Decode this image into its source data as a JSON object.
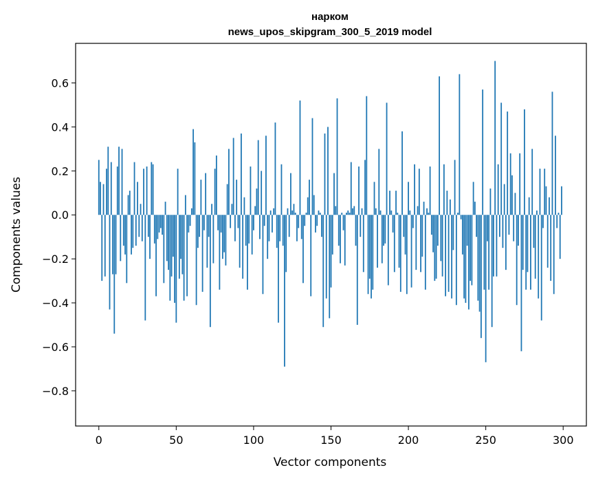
{
  "chart_data": {
    "type": "bar",
    "title_line1": "нарком",
    "title_line2": "news_upos_skipgram_300_5_2019 model",
    "xlabel": "Vector components",
    "ylabel": "Components values",
    "xlim": [
      -15,
      315
    ],
    "ylim": [
      -0.96,
      0.78
    ],
    "xticks": [
      0,
      50,
      100,
      150,
      200,
      250,
      300
    ],
    "yticks": [
      -0.8,
      -0.6,
      -0.4,
      -0.2,
      0.0,
      0.2,
      0.4,
      0.6
    ],
    "ytick_labels": [
      "−0.8",
      "−0.6",
      "−0.4",
      "−0.2",
      "0.0",
      "0.2",
      "0.4",
      "0.6"
    ],
    "bar_color": "#1f77b4",
    "values": [
      0.25,
      0.15,
      -0.3,
      0.14,
      -0.28,
      0.21,
      0.31,
      -0.43,
      0.24,
      -0.27,
      -0.54,
      -0.27,
      0.22,
      0.31,
      -0.21,
      0.3,
      -0.14,
      -0.18,
      -0.31,
      0.09,
      0.11,
      -0.18,
      -0.15,
      0.24,
      -0.14,
      0.15,
      -0.1,
      0.05,
      -0.12,
      0.21,
      -0.48,
      0.22,
      -0.1,
      -0.2,
      0.24,
      0.23,
      -0.13,
      -0.37,
      -0.11,
      -0.08,
      -0.06,
      -0.09,
      -0.31,
      0.06,
      -0.21,
      -0.25,
      -0.39,
      -0.28,
      -0.19,
      -0.4,
      -0.49,
      0.21,
      -0.29,
      -0.2,
      -0.27,
      -0.39,
      0.09,
      -0.37,
      -0.08,
      -0.05,
      0.03,
      0.39,
      0.33,
      -0.41,
      -0.15,
      -0.1,
      0.16,
      -0.35,
      -0.07,
      0.19,
      -0.24,
      -0.1,
      -0.51,
      0.05,
      -0.22,
      0.21,
      0.27,
      -0.07,
      -0.34,
      -0.08,
      -0.2,
      -0.17,
      -0.23,
      0.14,
      0.3,
      -0.06,
      0.05,
      0.35,
      -0.12,
      0.16,
      -0.06,
      -0.24,
      0.37,
      -0.29,
      0.08,
      -0.14,
      -0.34,
      -0.13,
      0.22,
      -0.18,
      -0.07,
      0.04,
      0.12,
      0.34,
      -0.11,
      0.2,
      -0.36,
      -0.05,
      0.36,
      -0.2,
      -0.12,
      0.02,
      -0.08,
      0.03,
      0.42,
      -0.15,
      -0.49,
      -0.12,
      0.23,
      -0.14,
      -0.69,
      -0.26,
      0.03,
      -0.1,
      0.19,
      0.02,
      0.05,
      0.01,
      -0.12,
      -0.06,
      0.52,
      -0.11,
      -0.31,
      -0.05,
      0.01,
      0.08,
      0.16,
      -0.37,
      0.44,
      0.09,
      -0.08,
      -0.05,
      0.02,
      0.01,
      -0.1,
      -0.51,
      0.37,
      -0.38,
      0.4,
      -0.47,
      -0.33,
      -0.18,
      0.19,
      0.04,
      0.53,
      -0.14,
      -0.22,
      0.01,
      -0.07,
      -0.23,
      0.01,
      0.02,
      0.01,
      0.24,
      0.03,
      0.04,
      -0.14,
      -0.5,
      0.22,
      -0.1,
      0.03,
      -0.26,
      0.25,
      0.54,
      -0.36,
      -0.29,
      -0.38,
      -0.34,
      0.15,
      0.03,
      -0.24,
      0.3,
      0.02,
      -0.22,
      -0.14,
      -0.13,
      0.51,
      -0.32,
      0.11,
      0.02,
      -0.08,
      -0.26,
      0.11,
      0.01,
      -0.24,
      -0.35,
      0.38,
      -0.1,
      -0.18,
      -0.36,
      0.15,
      0.02,
      -0.33,
      -0.06,
      0.23,
      -0.25,
      0.04,
      0.21,
      -0.26,
      -0.19,
      0.06,
      -0.34,
      0.03,
      0.01,
      0.22,
      -0.09,
      -0.17,
      -0.3,
      -0.29,
      -0.14,
      0.63,
      -0.21,
      -0.28,
      0.23,
      -0.37,
      0.11,
      -0.35,
      0.07,
      -0.38,
      -0.16,
      0.25,
      -0.41,
      0.01,
      0.64,
      -0.02,
      -0.18,
      -0.38,
      -0.4,
      -0.14,
      -0.43,
      -0.3,
      -0.32,
      0.15,
      0.06,
      -0.1,
      -0.39,
      -0.44,
      -0.56,
      0.57,
      -0.34,
      -0.67,
      -0.12,
      -0.34,
      0.12,
      -0.51,
      -0.28,
      0.7,
      -0.28,
      0.23,
      -0.1,
      0.51,
      -0.15,
      0.14,
      -0.25,
      0.47,
      -0.09,
      0.28,
      0.18,
      -0.12,
      0.1,
      -0.41,
      -0.14,
      0.28,
      -0.62,
      -0.25,
      0.48,
      -0.34,
      -0.26,
      0.08,
      -0.34,
      0.3,
      -0.15,
      -0.29,
      0.02,
      -0.38,
      0.21,
      -0.48,
      -0.06,
      0.21,
      0.13,
      -0.24,
      0.08,
      -0.3,
      0.56,
      -0.36,
      0.36,
      -0.06,
      0.01,
      -0.2,
      0.13
    ]
  }
}
